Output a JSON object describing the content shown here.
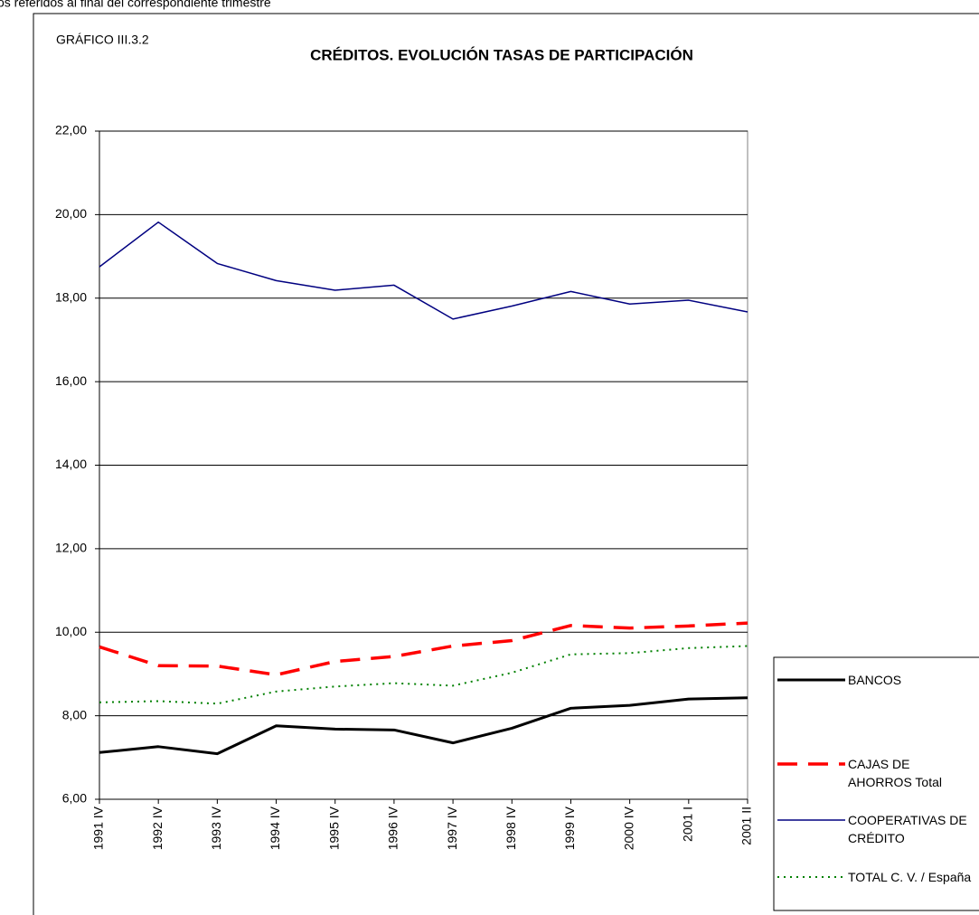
{
  "top_note": "os referidos al final del correspondiente trimestre",
  "chart_data": {
    "type": "line",
    "label": "GRÁFICO III.3.2",
    "title": "CRÉDITOS. EVOLUCIÓN TASAS DE PARTICIPACIÓN",
    "categories": [
      "1991 IV",
      "1992 IV",
      "1993 IV",
      "1994 IV",
      "1995 IV",
      "1996 IV",
      "1997 IV",
      "1998 IV",
      "1999 IV",
      "2000 IV",
      "2001   I",
      "2001   II"
    ],
    "series": [
      {
        "name": "BANCOS",
        "color": "#000000",
        "width": 3,
        "dash": "none",
        "values": [
          7.12,
          7.26,
          7.09,
          7.76,
          7.68,
          7.66,
          7.35,
          7.7,
          8.18,
          8.25,
          8.4,
          8.43
        ]
      },
      {
        "name": "CAJAS DE AHORROS Total",
        "color": "#ff0000",
        "width": 3.5,
        "dash": "22 12",
        "values": [
          9.65,
          9.2,
          9.19,
          8.98,
          9.3,
          9.42,
          9.67,
          9.8,
          10.16,
          10.1,
          10.15,
          10.22
        ]
      },
      {
        "name": "COOPERATIVAS DE CRÉDITO",
        "color": "#000080",
        "width": 1.5,
        "dash": "none",
        "values": [
          18.75,
          19.82,
          18.83,
          18.42,
          18.19,
          18.31,
          17.5,
          17.81,
          18.16,
          17.86,
          17.95,
          17.67
        ]
      },
      {
        "name": "TOTAL  C. V. / España",
        "color": "#008000",
        "width": 2,
        "dash": "2 5",
        "values": [
          8.32,
          8.35,
          8.29,
          8.58,
          8.7,
          8.78,
          8.72,
          9.03,
          9.47,
          9.5,
          9.62,
          9.67
        ]
      }
    ],
    "ylim": [
      6,
      22
    ],
    "yticks": [
      {
        "value": 6,
        "label": "6,00"
      },
      {
        "value": 8,
        "label": "8,00"
      },
      {
        "value": 10,
        "label": "10,00"
      },
      {
        "value": 12,
        "label": "12,00"
      },
      {
        "value": 14,
        "label": "14,00"
      },
      {
        "value": 16,
        "label": "16,00"
      },
      {
        "value": 18,
        "label": "18,00"
      },
      {
        "value": 20,
        "label": "20,00"
      },
      {
        "value": 22,
        "label": "22,00"
      }
    ],
    "grid": true,
    "legend": "right"
  }
}
